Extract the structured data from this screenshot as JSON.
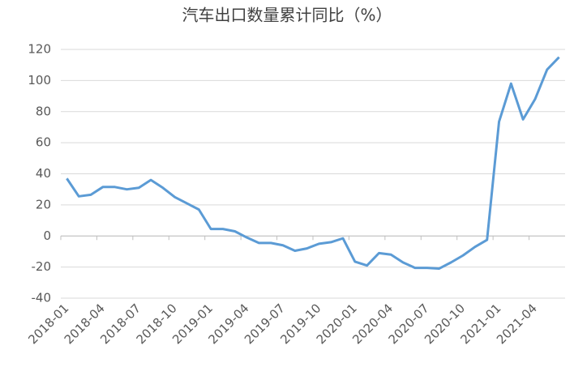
{
  "chart_data": {
    "type": "line",
    "title": "汽车出口数量累计同比（%）",
    "categories": [
      "2018-01",
      null,
      null,
      "2018-04",
      null,
      null,
      "2018-07",
      null,
      null,
      "2018-10",
      null,
      null,
      "2019-01",
      null,
      null,
      "2019-04",
      null,
      null,
      "2019-07",
      null,
      null,
      "2019-10",
      null,
      null,
      "2020-01",
      null,
      null,
      "2020-04",
      null,
      null,
      "2020-07",
      null,
      null,
      "2020-10",
      null,
      null,
      "2021-01",
      null,
      null,
      "2021-04",
      null,
      null
    ],
    "series": [
      {
        "name": "汽车出口数量累计同比",
        "color": "#5b9bd5",
        "values": [
          37,
          25.5,
          26.5,
          31.5,
          31.5,
          30,
          31,
          36,
          31,
          25,
          21,
          17,
          4.5,
          4.5,
          3,
          -1,
          -4.5,
          -4.5,
          -6,
          -9.5,
          -8,
          -5,
          -4,
          -1.5,
          -16.5,
          -19,
          -11,
          -12,
          -17,
          -20.5,
          -20.5,
          -21,
          -17,
          -12.5,
          -7,
          -2.5,
          73.5,
          98,
          75,
          88,
          107,
          115
        ]
      }
    ],
    "ylim": [
      -40,
      120
    ],
    "yticks": [
      -40,
      -20,
      0,
      20,
      40,
      60,
      80,
      100,
      120
    ],
    "grid": true
  }
}
